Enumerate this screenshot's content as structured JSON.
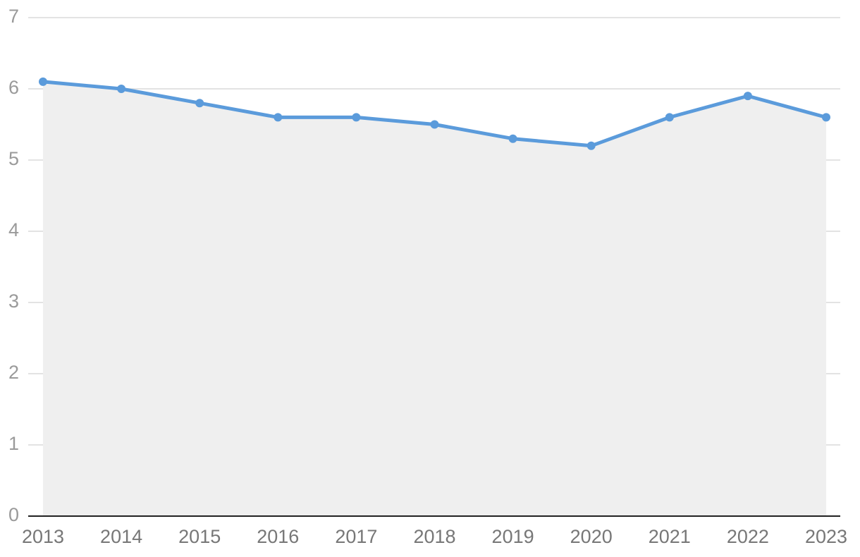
{
  "chart_data": {
    "type": "line",
    "x": [
      2013,
      2014,
      2015,
      2016,
      2017,
      2018,
      2019,
      2020,
      2021,
      2022,
      2023
    ],
    "values": [
      6.1,
      6.0,
      5.8,
      5.6,
      5.6,
      5.5,
      5.3,
      5.2,
      5.6,
      5.9,
      5.6
    ],
    "color": "#5b9bdb",
    "area": true,
    "area_color": "#efefef",
    "xlim": [
      2013,
      2023
    ],
    "xticks": [
      2013,
      2014,
      2015,
      2016,
      2017,
      2018,
      2019,
      2020,
      2021,
      2022,
      2023
    ],
    "ylim": [
      0,
      7
    ],
    "yticks": [
      0,
      1,
      2,
      3,
      4,
      5,
      6,
      7
    ],
    "grid": true
  }
}
